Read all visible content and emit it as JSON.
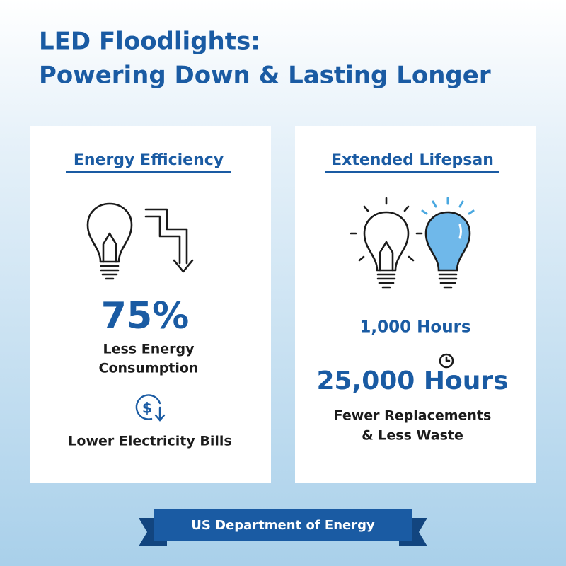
{
  "header": {
    "title_lines": [
      "LED Floodlights:",
      "Powering Down & Lasting Longer"
    ]
  },
  "cards": [
    {
      "heading": "Energy Efficiency",
      "stat": "75%",
      "stat_caption_lines": [
        "Less Energy",
        "Consumption"
      ],
      "note": "Lower Electricity Bills"
    },
    {
      "heading": "Extended Lifepsan",
      "old_value": "1,000 Hours",
      "new_value": "25,000 Hours",
      "caption_lines": [
        "Fewer Replacements",
        "& Less Waste"
      ]
    }
  ],
  "footer": {
    "source": "US Department of Energy"
  }
}
